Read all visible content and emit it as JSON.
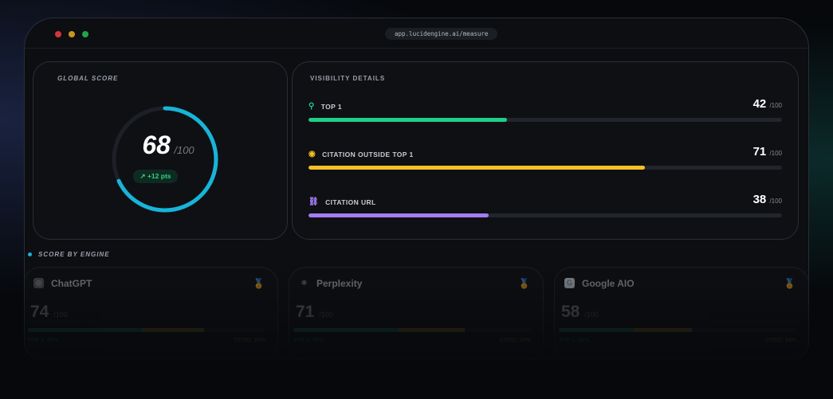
{
  "browser": {
    "url": "app.lucidengine.ai/measure"
  },
  "global_score": {
    "title": "GLOBAL SCORE",
    "value": "68",
    "max": "/100",
    "delta": "+12 pts",
    "fraction": 0.68
  },
  "visibility": {
    "title": "VISIBILITY DETAILS",
    "rows": [
      {
        "label": "TOP 1",
        "value": "42",
        "max": "/100",
        "percent": 42,
        "color": "#1fcf86",
        "icon": "award-icon"
      },
      {
        "label": "CITATION OUTSIDE TOP 1",
        "value": "71",
        "max": "/100",
        "percent": 71,
        "color": "#f5c023",
        "icon": "eye-icon"
      },
      {
        "label": "CITATION URL",
        "value": "38",
        "max": "/100",
        "percent": 38,
        "color": "#a47cf5",
        "icon": "link-icon"
      }
    ]
  },
  "engines": {
    "title": "SCORE BY ENGINE",
    "items": [
      {
        "name": "ChatGPT",
        "score": "74",
        "max": "/100",
        "top1": "TOP 1: 48%",
        "cited": "CITED: 26%",
        "top1_pct": 48,
        "cited_pct": 26,
        "medal": "1"
      },
      {
        "name": "Perplexity",
        "score": "71",
        "max": "/100",
        "top1": "TOP 1: 44%",
        "cited": "CITED: 28%",
        "top1_pct": 44,
        "cited_pct": 28,
        "medal": "2"
      },
      {
        "name": "Google AIO",
        "score": "58",
        "max": "/100",
        "top1": "TOP 1: 32%",
        "cited": "CITED: 24%",
        "top1_pct": 32,
        "cited_pct": 24,
        "medal": "3"
      }
    ]
  }
}
